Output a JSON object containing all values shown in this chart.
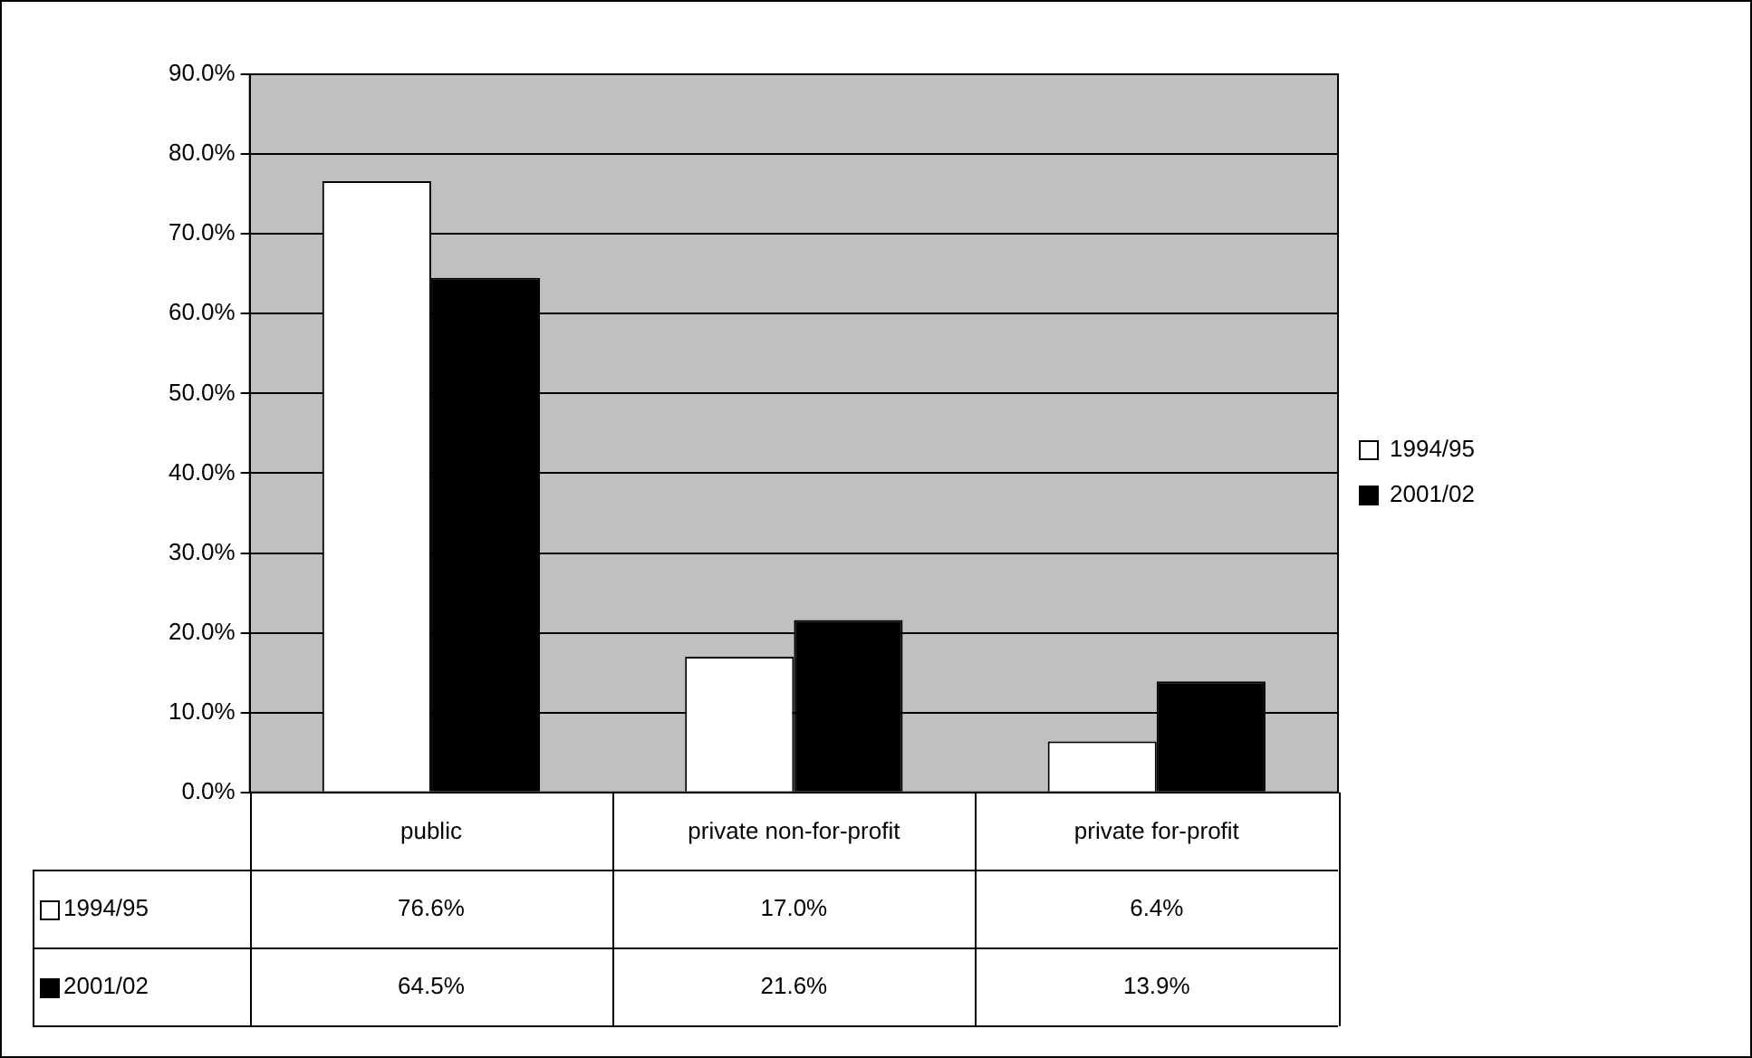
{
  "chart_data": {
    "type": "bar",
    "categories": [
      "public",
      "private non-for-profit",
      "private for-profit"
    ],
    "series": [
      {
        "name": "1994/95",
        "color": "#ffffff",
        "values": [
          76.6,
          17.0,
          6.4
        ],
        "value_labels": [
          "76.6%",
          "17.0%",
          "6.4%"
        ]
      },
      {
        "name": "2001/02",
        "color": "#000000",
        "values": [
          64.5,
          21.6,
          13.9
        ],
        "value_labels": [
          "64.5%",
          "21.6%",
          "13.9%"
        ]
      }
    ],
    "ylim": [
      0,
      90
    ],
    "yticks": [
      {
        "value": 0,
        "label": "0.0%"
      },
      {
        "value": 10,
        "label": "10.0%"
      },
      {
        "value": 20,
        "label": "20.0%"
      },
      {
        "value": 30,
        "label": "30.0%"
      },
      {
        "value": 40,
        "label": "40.0%"
      },
      {
        "value": 50,
        "label": "50.0%"
      },
      {
        "value": 60,
        "label": "60.0%"
      },
      {
        "value": 70,
        "label": "70.0%"
      },
      {
        "value": 80,
        "label": "80.0%"
      },
      {
        "value": 90,
        "label": "90.0%"
      }
    ],
    "grid": "y",
    "legend": "right"
  }
}
